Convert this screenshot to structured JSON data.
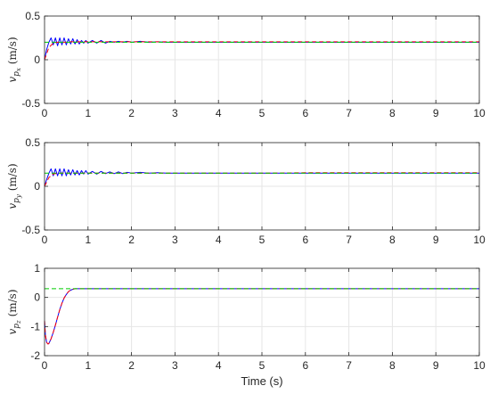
{
  "chart_data": [
    {
      "type": "line",
      "ylabel": "v_{p_x} (m/s)",
      "ylabel_base": "v",
      "ylabel_sub": "p",
      "ylabel_subsub": "x",
      "ylabel_unit": " (m/s)",
      "xlim": [
        0,
        10
      ],
      "ylim": [
        -0.5,
        0.5
      ],
      "xticks": [
        "0",
        "1",
        "2",
        "3",
        "4",
        "5",
        "6",
        "7",
        "8",
        "9",
        "10"
      ],
      "yticks": [
        "-0.5",
        "0",
        "0.5"
      ],
      "grid": true,
      "series": [
        {
          "color": "#0000ff",
          "style": "solid",
          "x": [
            0,
            0.05,
            0.1,
            0.15,
            0.2,
            0.25,
            0.3,
            0.35,
            0.4,
            0.45,
            0.5,
            0.55,
            0.6,
            0.65,
            0.7,
            0.75,
            0.8,
            0.85,
            0.9,
            0.95,
            1,
            1.1,
            1.2,
            1.3,
            1.4,
            1.5,
            1.6,
            1.7,
            1.8,
            1.9,
            2,
            2.2,
            2.4,
            2.6,
            2.8,
            3,
            4,
            5,
            6,
            7,
            8,
            9,
            10
          ],
          "y": [
            0,
            0.12,
            0.2,
            0.25,
            0.17,
            0.25,
            0.16,
            0.25,
            0.17,
            0.25,
            0.17,
            0.24,
            0.18,
            0.24,
            0.18,
            0.23,
            0.18,
            0.22,
            0.19,
            0.22,
            0.19,
            0.22,
            0.19,
            0.22,
            0.19,
            0.21,
            0.2,
            0.21,
            0.2,
            0.21,
            0.2,
            0.21,
            0.2,
            0.205,
            0.2,
            0.2,
            0.2,
            0.2,
            0.2,
            0.2,
            0.2,
            0.2,
            0.2
          ]
        },
        {
          "color": "#ff0000",
          "style": "dashed",
          "x": [
            0,
            0.1,
            0.2,
            0.3,
            0.4,
            0.5,
            0.6,
            0.8,
            1,
            1.5,
            2,
            3,
            4,
            5,
            6,
            7,
            8,
            9,
            10
          ],
          "y": [
            0,
            0.14,
            0.19,
            0.2,
            0.2,
            0.2,
            0.205,
            0.205,
            0.205,
            0.205,
            0.205,
            0.205,
            0.205,
            0.205,
            0.205,
            0.205,
            0.205,
            0.205,
            0.205
          ]
        },
        {
          "color": "#00cc00",
          "style": "dashed",
          "x": [
            0,
            0.05,
            0.1,
            10
          ],
          "y": [
            0.2,
            0.2,
            0.2,
            0.2
          ]
        }
      ]
    },
    {
      "type": "line",
      "ylabel": "v_{p_y} (m/s)",
      "ylabel_base": "v",
      "ylabel_sub": "p",
      "ylabel_subsub": "y",
      "ylabel_unit": " (m/s)",
      "xlim": [
        0,
        10
      ],
      "ylim": [
        -0.5,
        0.5
      ],
      "xticks": [
        "0",
        "1",
        "2",
        "3",
        "4",
        "5",
        "6",
        "7",
        "8",
        "9",
        "10"
      ],
      "yticks": [
        "-0.5",
        "0",
        "0.5"
      ],
      "grid": true,
      "series": [
        {
          "color": "#0000ff",
          "style": "solid",
          "x": [
            0,
            0.05,
            0.1,
            0.15,
            0.2,
            0.25,
            0.3,
            0.35,
            0.4,
            0.45,
            0.5,
            0.55,
            0.6,
            0.65,
            0.7,
            0.75,
            0.8,
            0.85,
            0.9,
            0.95,
            1,
            1.1,
            1.2,
            1.3,
            1.4,
            1.5,
            1.6,
            1.7,
            1.8,
            1.9,
            2,
            2.2,
            2.4,
            2.6,
            2.8,
            3,
            4,
            5,
            6,
            7,
            8,
            9,
            10
          ],
          "y": [
            0,
            0.08,
            0.15,
            0.2,
            0.12,
            0.2,
            0.12,
            0.2,
            0.12,
            0.2,
            0.12,
            0.19,
            0.13,
            0.19,
            0.13,
            0.18,
            0.13,
            0.18,
            0.14,
            0.18,
            0.14,
            0.17,
            0.14,
            0.17,
            0.145,
            0.165,
            0.145,
            0.165,
            0.145,
            0.16,
            0.15,
            0.16,
            0.15,
            0.155,
            0.15,
            0.15,
            0.15,
            0.15,
            0.15,
            0.15,
            0.15,
            0.15,
            0.15
          ]
        },
        {
          "color": "#ff0000",
          "style": "dashed",
          "x": [
            0,
            0.1,
            0.2,
            0.3,
            0.4,
            0.6,
            0.8,
            1,
            1.5,
            2,
            3,
            4,
            5,
            6,
            7,
            8,
            9,
            10
          ],
          "y": [
            0,
            0.1,
            0.14,
            0.15,
            0.15,
            0.15,
            0.15,
            0.15,
            0.15,
            0.15,
            0.15,
            0.15,
            0.15,
            0.155,
            0.155,
            0.155,
            0.155,
            0.155
          ]
        },
        {
          "color": "#00cc00",
          "style": "dashed",
          "x": [
            0,
            10
          ],
          "y": [
            0.15,
            0.15
          ]
        }
      ]
    },
    {
      "type": "line",
      "ylabel": "v_{p_z} (m/s)",
      "ylabel_base": "v",
      "ylabel_sub": "p",
      "ylabel_subsub": "z",
      "ylabel_unit": " (m/s)",
      "xlabel": "Time (s)",
      "xlim": [
        0,
        10
      ],
      "ylim": [
        -2,
        1
      ],
      "xticks": [
        "0",
        "1",
        "2",
        "3",
        "4",
        "5",
        "6",
        "7",
        "8",
        "9",
        "10"
      ],
      "yticks": [
        "-2",
        "-1",
        "0",
        "1"
      ],
      "grid": true,
      "series": [
        {
          "color": "#0000ff",
          "style": "solid",
          "x": [
            0,
            0.02,
            0.05,
            0.08,
            0.1,
            0.15,
            0.2,
            0.25,
            0.3,
            0.35,
            0.4,
            0.45,
            0.5,
            0.55,
            0.6,
            0.65,
            0.7,
            0.75,
            0.8,
            0.9,
            1,
            1.5,
            2,
            3,
            4,
            5,
            6,
            7,
            8,
            9,
            10
          ],
          "y": [
            -0.8,
            -1.3,
            -1.55,
            -1.6,
            -1.58,
            -1.42,
            -1.2,
            -0.95,
            -0.68,
            -0.42,
            -0.2,
            -0.02,
            0.1,
            0.2,
            0.25,
            0.28,
            0.3,
            0.3,
            0.3,
            0.3,
            0.3,
            0.3,
            0.3,
            0.3,
            0.3,
            0.3,
            0.3,
            0.3,
            0.3,
            0.3,
            0.3
          ]
        },
        {
          "color": "#ff0000",
          "style": "dashed",
          "x": [
            0,
            0.02,
            0.05,
            0.08,
            0.1,
            0.15,
            0.2,
            0.25,
            0.3,
            0.35,
            0.4,
            0.45,
            0.5,
            0.55,
            0.6,
            0.65,
            0.7,
            0.75,
            0.8,
            0.9,
            1,
            1.5,
            2,
            3,
            4,
            5,
            6,
            7,
            8,
            9,
            10
          ],
          "y": [
            -0.8,
            -1.3,
            -1.55,
            -1.6,
            -1.58,
            -1.42,
            -1.2,
            -0.95,
            -0.68,
            -0.42,
            -0.2,
            -0.02,
            0.1,
            0.2,
            0.25,
            0.28,
            0.3,
            0.3,
            0.3,
            0.3,
            0.3,
            0.3,
            0.3,
            0.3,
            0.3,
            0.3,
            0.3,
            0.3,
            0.3,
            0.3,
            0.3
          ]
        },
        {
          "color": "#00cc00",
          "style": "dashed",
          "x": [
            0,
            10
          ],
          "y": [
            0.3,
            0.3
          ]
        }
      ]
    }
  ]
}
